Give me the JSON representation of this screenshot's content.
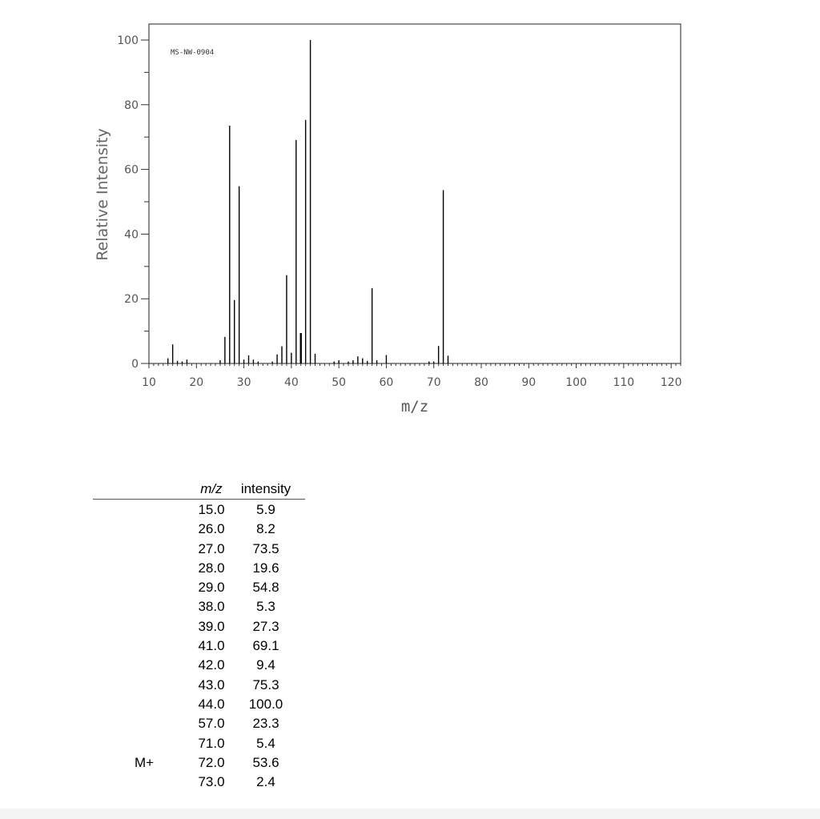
{
  "chart_data": {
    "type": "bar",
    "spectrum_code": "MS-NW-0904",
    "xlabel": "m/z",
    "ylabel": "Relative Intensity",
    "xlim": [
      10,
      122
    ],
    "ylim": [
      0,
      100
    ],
    "x_ticks": [
      10,
      20,
      30,
      40,
      50,
      60,
      70,
      80,
      90,
      100,
      110,
      120
    ],
    "y_ticks": [
      0,
      20,
      40,
      60,
      80,
      100
    ],
    "grid": false,
    "peaks": [
      {
        "x": 14,
        "y": 1.6
      },
      {
        "x": 15,
        "y": 5.9
      },
      {
        "x": 16,
        "y": 0.8
      },
      {
        "x": 17,
        "y": 0.6
      },
      {
        "x": 18,
        "y": 1.2
      },
      {
        "x": 25,
        "y": 1.0
      },
      {
        "x": 26,
        "y": 8.2
      },
      {
        "x": 27,
        "y": 73.5
      },
      {
        "x": 28,
        "y": 19.6
      },
      {
        "x": 29,
        "y": 54.8
      },
      {
        "x": 30,
        "y": 1.2
      },
      {
        "x": 31,
        "y": 2.5
      },
      {
        "x": 32,
        "y": 1.2
      },
      {
        "x": 33,
        "y": 0.6
      },
      {
        "x": 36,
        "y": 0.6
      },
      {
        "x": 37,
        "y": 2.8
      },
      {
        "x": 38,
        "y": 5.3
      },
      {
        "x": 39,
        "y": 27.3
      },
      {
        "x": 40,
        "y": 3.3
      },
      {
        "x": 41,
        "y": 69.1
      },
      {
        "x": 42,
        "y": 9.4
      },
      {
        "x": 43,
        "y": 75.3
      },
      {
        "x": 44,
        "y": 100.0
      },
      {
        "x": 45,
        "y": 3.0
      },
      {
        "x": 49,
        "y": 0.6
      },
      {
        "x": 50,
        "y": 1.0
      },
      {
        "x": 52,
        "y": 0.6
      },
      {
        "x": 53,
        "y": 1.0
      },
      {
        "x": 54,
        "y": 2.2
      },
      {
        "x": 55,
        "y": 1.6
      },
      {
        "x": 56,
        "y": 0.8
      },
      {
        "x": 57,
        "y": 23.3
      },
      {
        "x": 58,
        "y": 1.0
      },
      {
        "x": 60,
        "y": 2.6
      },
      {
        "x": 69,
        "y": 0.6
      },
      {
        "x": 70,
        "y": 0.6
      },
      {
        "x": 71,
        "y": 5.4
      },
      {
        "x": 72,
        "y": 53.6
      },
      {
        "x": 73,
        "y": 2.4
      }
    ]
  },
  "table": {
    "headers": {
      "mz": "m/z",
      "intensity": "intensity"
    },
    "rows": [
      {
        "label": "",
        "mz": "15.0",
        "intensity": "5.9"
      },
      {
        "label": "",
        "mz": "26.0",
        "intensity": "8.2"
      },
      {
        "label": "",
        "mz": "27.0",
        "intensity": "73.5"
      },
      {
        "label": "",
        "mz": "28.0",
        "intensity": "19.6"
      },
      {
        "label": "",
        "mz": "29.0",
        "intensity": "54.8"
      },
      {
        "label": "",
        "mz": "38.0",
        "intensity": "5.3"
      },
      {
        "label": "",
        "mz": "39.0",
        "intensity": "27.3"
      },
      {
        "label": "",
        "mz": "41.0",
        "intensity": "69.1"
      },
      {
        "label": "",
        "mz": "42.0",
        "intensity": "9.4"
      },
      {
        "label": "",
        "mz": "43.0",
        "intensity": "75.3"
      },
      {
        "label": "",
        "mz": "44.0",
        "intensity": "100.0"
      },
      {
        "label": "",
        "mz": "57.0",
        "intensity": "23.3"
      },
      {
        "label": "",
        "mz": "71.0",
        "intensity": "5.4"
      },
      {
        "label": "M+",
        "mz": "72.0",
        "intensity": "53.6"
      },
      {
        "label": "",
        "mz": "73.0",
        "intensity": "2.4"
      }
    ]
  }
}
